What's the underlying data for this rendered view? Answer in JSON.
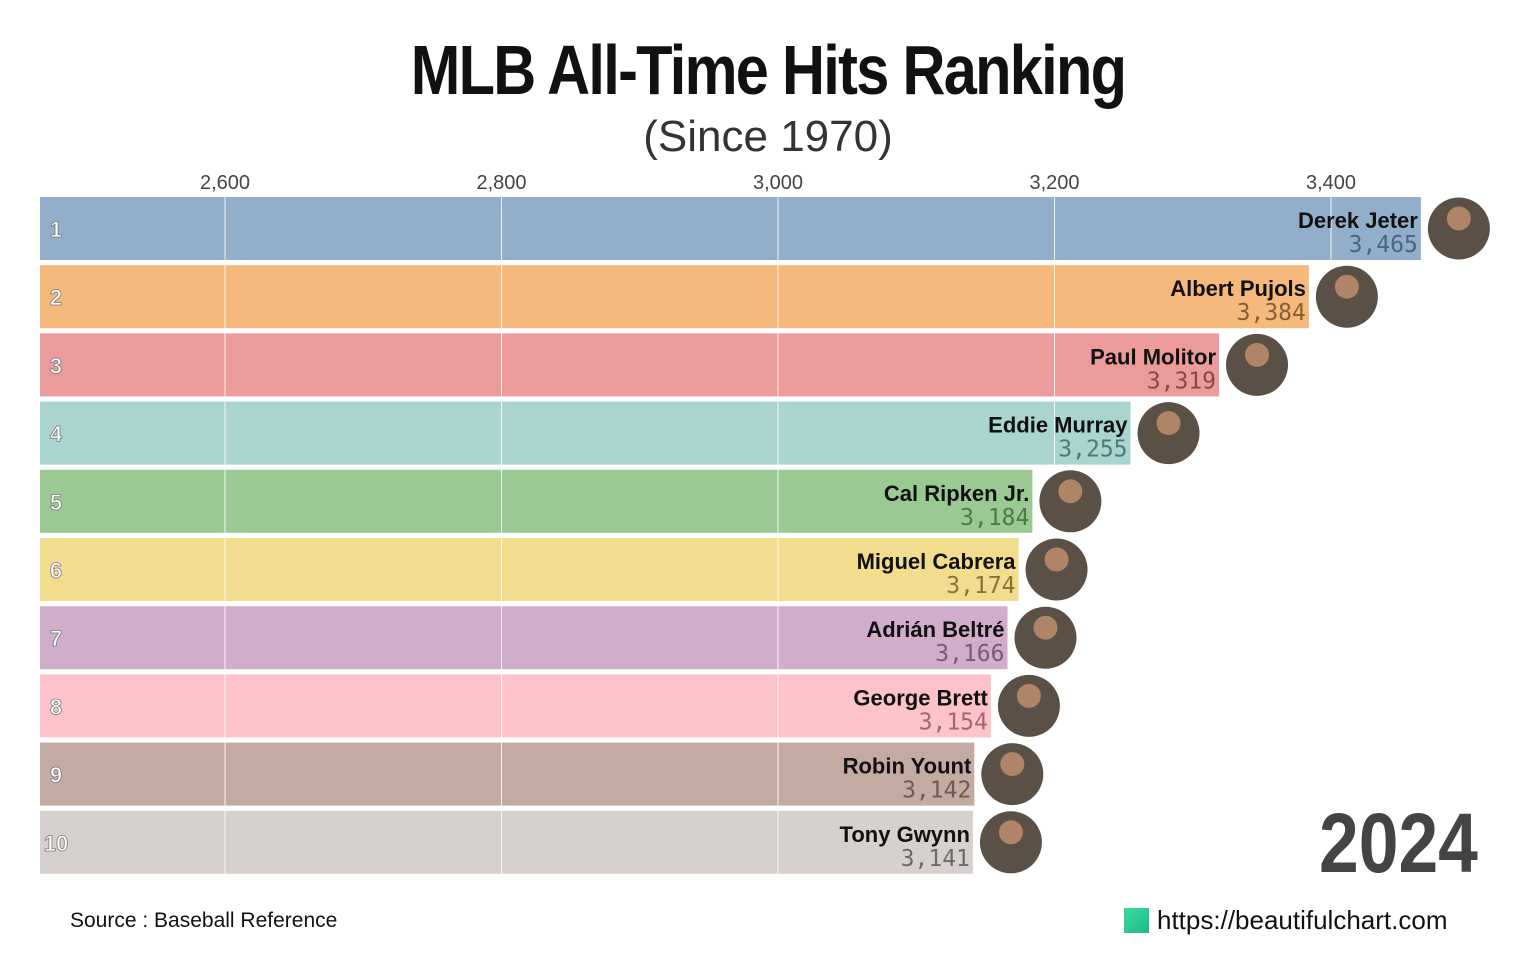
{
  "chart_data": {
    "type": "bar",
    "orientation": "horizontal",
    "title": "MLB All-Time Hits Ranking",
    "subtitle": "(Since 1970)",
    "year": "2024",
    "xlim": [
      2466,
      3500
    ],
    "xticks": [
      2600,
      2800,
      3000,
      3200,
      3400
    ],
    "xtick_labels": [
      "2,600",
      "2,800",
      "3,000",
      "3,200",
      "3,400"
    ],
    "grid": true,
    "ranks": [
      "1",
      "2",
      "3",
      "4",
      "5",
      "6",
      "7",
      "8",
      "9",
      "10"
    ],
    "categories": [
      "Derek Jeter",
      "Albert Pujols",
      "Paul Molitor",
      "Eddie Murray",
      "Cal Ripken Jr.",
      "Miguel Cabrera",
      "Adrián Beltré",
      "George Brett",
      "Robin Yount",
      "Tony Gwynn"
    ],
    "values": [
      3465,
      3384,
      3319,
      3255,
      3184,
      3174,
      3166,
      3154,
      3142,
      3141
    ],
    "value_labels": [
      "3,465",
      "3,384",
      "3,319",
      "3,255",
      "3,184",
      "3,174",
      "3,166",
      "3,154",
      "3,142",
      "3,141"
    ],
    "colors": [
      "#93aecb",
      "#f5b97c",
      "#eb9b9b",
      "#a9d4cf",
      "#9bc994",
      "#f2dc8e",
      "#d0aecb",
      "#fec3ca",
      "#c4aba1",
      "#d6d1cf"
    ],
    "value_colors": [
      "#4a6584",
      "#8a5e30",
      "#8a4848",
      "#4e7a75",
      "#4d7a46",
      "#857535",
      "#7a5a75",
      "#9a6a70",
      "#6e5a52",
      "#6e6a68"
    ]
  },
  "footer": {
    "source": "Source : Baseball Reference",
    "site": "https://beautifulchart.com"
  }
}
